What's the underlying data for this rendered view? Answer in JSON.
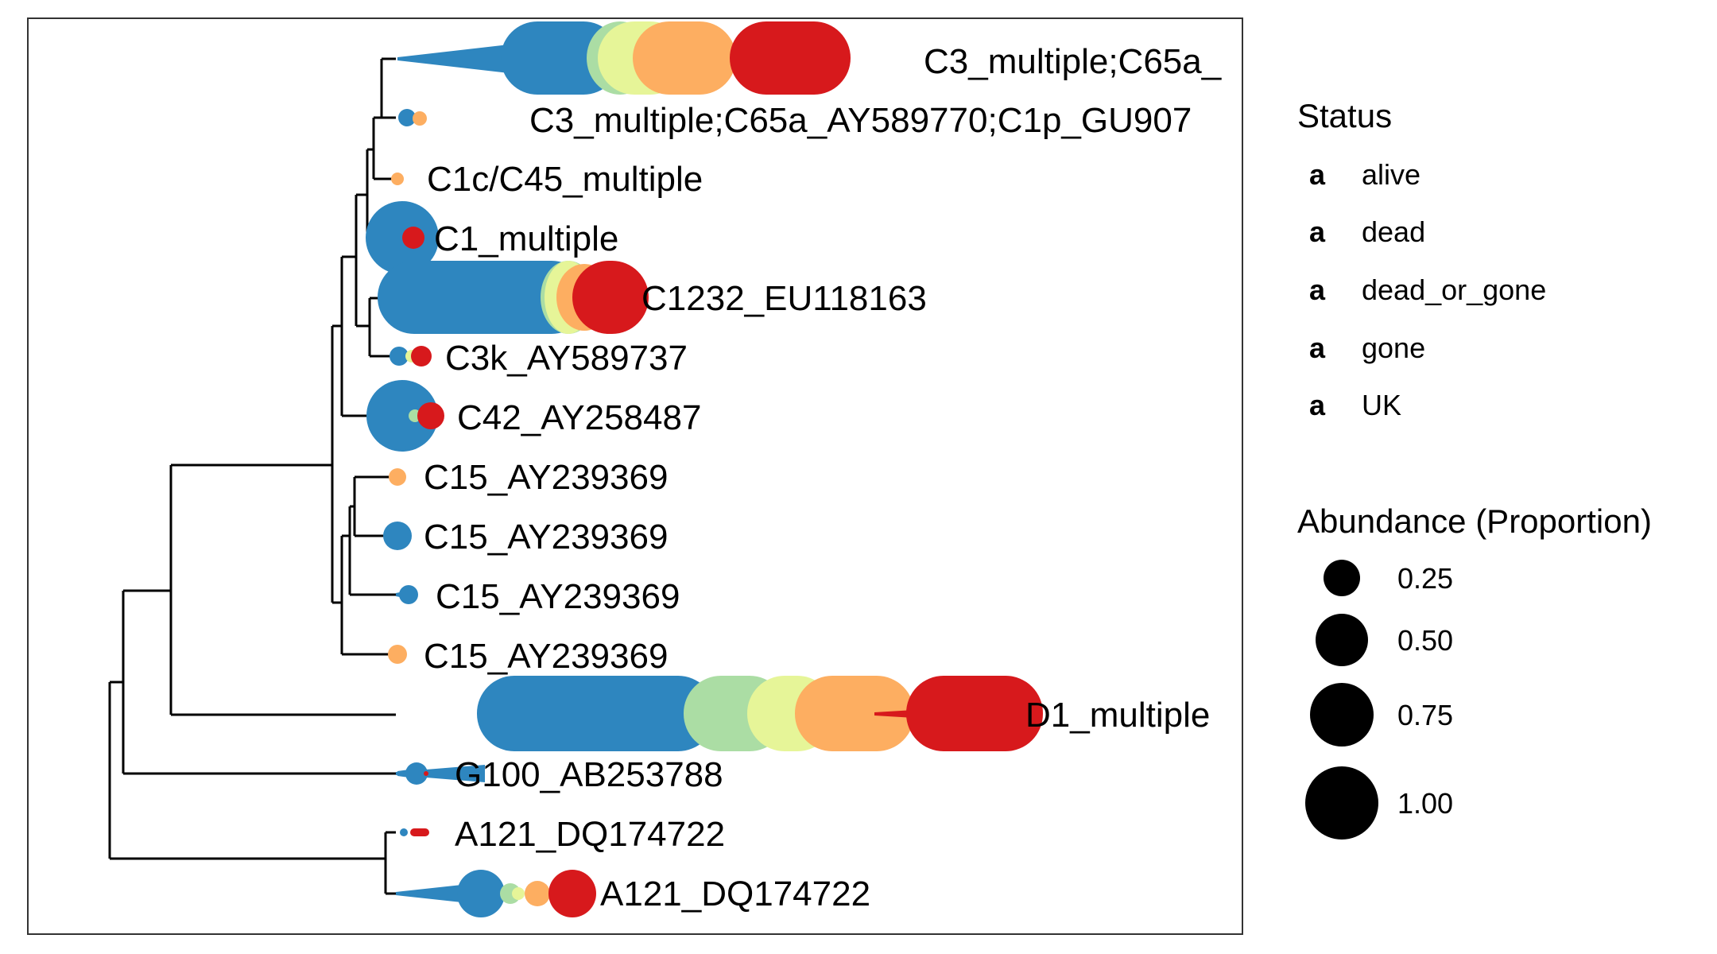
{
  "colors": {
    "alive": "#2E86BF",
    "dead": "#ABDDA4",
    "dead_or_gone": "#E6F598",
    "gone": "#FDAE61",
    "UK": "#D7191C",
    "branch": "#000000",
    "panel_border": "#333333"
  },
  "tree": {
    "tips": [
      {
        "label": "C3_multiple;C65a_",
        "segments": [
          [
            "alive",
            0.55
          ],
          [
            "dead",
            0.08
          ],
          [
            "dead_or_gone",
            0.07
          ],
          [
            "gone",
            0.13
          ],
          [
            "UK",
            0.2
          ]
        ]
      },
      {
        "label": "C3_multiple;C65a_AY589770;C1p_GU907",
        "segments": [
          [
            "alive",
            0.7
          ],
          [
            "gone",
            0.3
          ]
        ]
      },
      {
        "label": "C1c/C45_multiple",
        "segments": [
          [
            "gone",
            1.0
          ]
        ]
      },
      {
        "label": "C1_multiple",
        "segments": [
          [
            "alive",
            0.85
          ],
          [
            "UK",
            0.15
          ]
        ]
      },
      {
        "label": "C1232_EU118163",
        "segments": [
          [
            "alive",
            0.62
          ],
          [
            "dead",
            0.03
          ],
          [
            "dead_or_gone",
            0.04
          ],
          [
            "gone",
            0.03
          ],
          [
            "UK",
            0.28
          ]
        ]
      },
      {
        "label": "C3k_AY589737",
        "segments": [
          [
            "alive",
            0.5
          ],
          [
            "dead_or_gone",
            0.1
          ],
          [
            "UK",
            0.4
          ]
        ]
      },
      {
        "label": "C42_AY258487",
        "segments": [
          [
            "alive",
            0.75
          ],
          [
            "dead",
            0.05
          ],
          [
            "UK",
            0.2
          ]
        ]
      },
      {
        "label": "C15_AY239369",
        "segments": [
          [
            "gone",
            1.0
          ]
        ]
      },
      {
        "label": "C15_AY239369",
        "segments": [
          [
            "alive",
            1.0
          ]
        ]
      },
      {
        "label": "C15_AY239369",
        "segments": [
          [
            "alive",
            1.0
          ]
        ]
      },
      {
        "label": "C15_AY239369",
        "segments": [
          [
            "gone",
            1.0
          ]
        ]
      },
      {
        "label": "D1_multiple",
        "segments": [
          [
            "alive",
            0.38
          ],
          [
            "dead",
            0.1
          ],
          [
            "dead_or_gone",
            0.06
          ],
          [
            "gone",
            0.14
          ],
          [
            "UK",
            0.32
          ]
        ]
      },
      {
        "label": "G100_AB253788",
        "segments": [
          [
            "alive",
            0.95
          ],
          [
            "UK",
            0.05
          ]
        ]
      },
      {
        "label": "A121_DQ174722",
        "segments": [
          [
            "alive",
            0.4
          ],
          [
            "UK",
            0.6
          ]
        ]
      },
      {
        "label": "A121_DQ174722",
        "segments": [
          [
            "alive",
            0.45
          ],
          [
            "dead",
            0.1
          ],
          [
            "dead_or_gone",
            0.05
          ],
          [
            "gone",
            0.1
          ],
          [
            "UK",
            0.3
          ]
        ]
      }
    ]
  },
  "legend": {
    "status": {
      "title": "Status",
      "items": [
        {
          "key": "alive",
          "label": "alive"
        },
        {
          "key": "dead",
          "label": "dead"
        },
        {
          "key": "dead_or_gone",
          "label": "dead_or_gone"
        },
        {
          "key": "gone",
          "label": "gone"
        },
        {
          "key": "UK",
          "label": "UK"
        }
      ]
    },
    "abundance": {
      "title": "Abundance (Proportion)",
      "items": [
        {
          "value": 0.25,
          "label": "0.25"
        },
        {
          "value": 0.5,
          "label": "0.50"
        },
        {
          "value": 0.75,
          "label": "0.75"
        },
        {
          "value": 1.0,
          "label": "1.00"
        }
      ]
    }
  }
}
